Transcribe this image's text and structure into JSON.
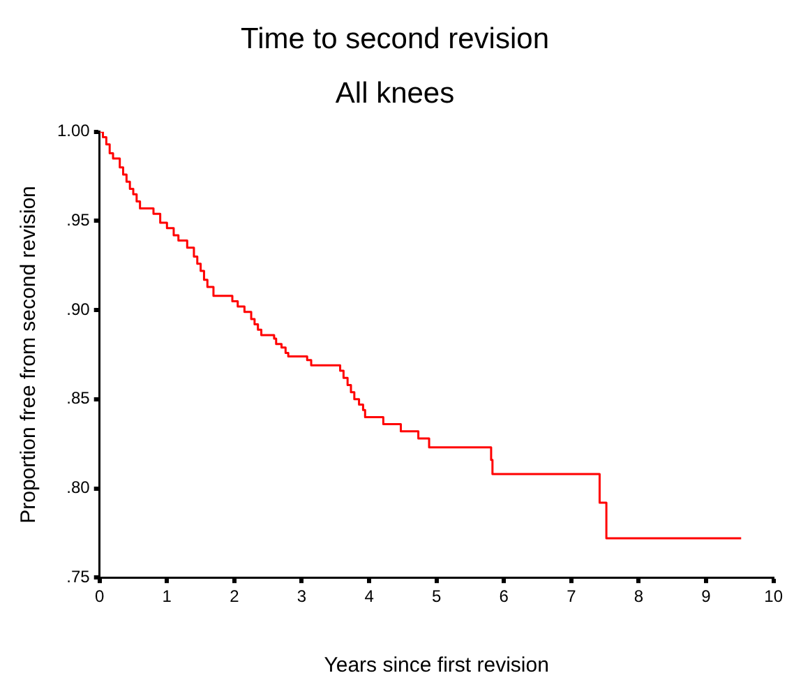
{
  "chart_data": {
    "type": "step",
    "title": "Time to second revision",
    "subtitle": "All knees",
    "xlabel": "Years since first revision",
    "ylabel": "Proportion free from second revision",
    "x": [
      0,
      0.05,
      0.1,
      0.15,
      0.2,
      0.3,
      0.35,
      0.4,
      0.45,
      0.5,
      0.55,
      0.6,
      0.8,
      0.9,
      1.0,
      1.1,
      1.17,
      1.3,
      1.4,
      1.45,
      1.5,
      1.55,
      1.6,
      1.69,
      1.97,
      2.05,
      2.15,
      2.25,
      2.3,
      2.35,
      2.4,
      2.59,
      2.62,
      2.7,
      2.76,
      2.8,
      3.08,
      3.14,
      3.57,
      3.62,
      3.68,
      3.73,
      3.78,
      3.85,
      3.91,
      3.94,
      4.21,
      4.47,
      4.73,
      4.89,
      5.81,
      5.83,
      7.42,
      7.52,
      9.52
    ],
    "series": [
      {
        "color": "#ff0000",
        "values": [
          1.0,
          0.997,
          0.993,
          0.988,
          0.985,
          0.98,
          0.976,
          0.972,
          0.968,
          0.965,
          0.961,
          0.957,
          0.954,
          0.949,
          0.946,
          0.942,
          0.939,
          0.935,
          0.93,
          0.926,
          0.922,
          0.917,
          0.913,
          0.908,
          0.905,
          0.902,
          0.899,
          0.895,
          0.892,
          0.889,
          0.886,
          0.884,
          0.881,
          0.879,
          0.876,
          0.874,
          0.872,
          0.869,
          0.866,
          0.862,
          0.858,
          0.854,
          0.85,
          0.847,
          0.844,
          0.84,
          0.836,
          0.832,
          0.828,
          0.823,
          0.816,
          0.808,
          0.792,
          0.772,
          0.772
        ]
      }
    ],
    "xlim": [
      0,
      10
    ],
    "xticks": [
      0,
      1,
      2,
      3,
      4,
      5,
      6,
      7,
      8,
      9,
      10
    ],
    "ylim": [
      0.75,
      1.0
    ],
    "yticks": [
      {
        "value": 0.75,
        "label": ".75"
      },
      {
        "value": 0.8,
        "label": ".80"
      },
      {
        "value": 0.85,
        "label": ".85"
      },
      {
        "value": 0.9,
        "label": ".90"
      },
      {
        "value": 0.95,
        "label": ".95"
      },
      {
        "value": 1.0,
        "label": "1.00"
      }
    ],
    "grid": false,
    "legend": false
  }
}
